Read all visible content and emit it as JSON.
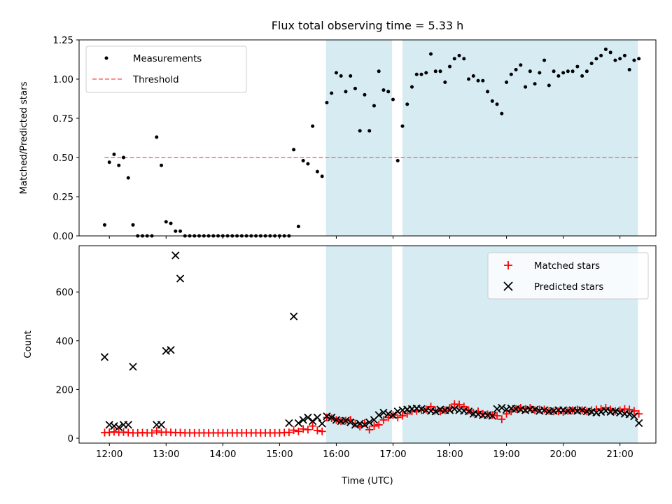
{
  "chart_data": [
    {
      "type": "scatter",
      "title": "Flux total observing time = 5.33 h",
      "xlabel": "",
      "ylabel": "Matched/Predicted stars",
      "xlim": [
        "11:28",
        "21:38"
      ],
      "ylim": [
        0,
        1.25
      ],
      "yticks": [
        "0.00",
        "0.25",
        "0.50",
        "0.75",
        "1.00",
        "1.25"
      ],
      "legend_position": "upper-left",
      "shaded_intervals": [
        [
          "15:49",
          "16:59"
        ],
        [
          "17:10",
          "21:19"
        ]
      ],
      "shade_color": "#add8e6",
      "series": [
        {
          "name": "Measurements",
          "color": "#000000",
          "marker": "dot",
          "x": [
            "11:55",
            "12:00",
            "12:05",
            "12:10",
            "12:15",
            "12:20",
            "12:25",
            "12:30",
            "12:35",
            "12:40",
            "12:45",
            "12:50",
            "12:55",
            "13:00",
            "13:05",
            "13:10",
            "13:15",
            "13:20",
            "13:25",
            "13:30",
            "13:35",
            "13:40",
            "13:45",
            "13:50",
            "13:55",
            "14:00",
            "14:05",
            "14:10",
            "14:15",
            "14:20",
            "14:25",
            "14:30",
            "14:35",
            "14:40",
            "14:45",
            "14:50",
            "14:55",
            "15:00",
            "15:05",
            "15:10",
            "15:15",
            "15:20",
            "15:25",
            "15:30",
            "15:35",
            "15:40",
            "15:45",
            "15:50",
            "15:55",
            "16:00",
            "16:05",
            "16:10",
            "16:15",
            "16:20",
            "16:25",
            "16:30",
            "16:35",
            "16:40",
            "16:45",
            "16:50",
            "16:55",
            "17:00",
            "17:05",
            "17:10",
            "17:15",
            "17:20",
            "17:25",
            "17:30",
            "17:35",
            "17:40",
            "17:45",
            "17:50",
            "17:55",
            "18:00",
            "18:05",
            "18:10",
            "18:15",
            "18:20",
            "18:25",
            "18:30",
            "18:35",
            "18:40",
            "18:45",
            "18:50",
            "18:55",
            "19:00",
            "19:05",
            "19:10",
            "19:15",
            "19:20",
            "19:25",
            "19:30",
            "19:35",
            "19:40",
            "19:45",
            "19:50",
            "19:55",
            "20:00",
            "20:05",
            "20:10",
            "20:15",
            "20:20",
            "20:25",
            "20:30",
            "20:35",
            "20:40",
            "20:45",
            "20:50",
            "20:55",
            "21:00",
            "21:05",
            "21:10",
            "21:15",
            "21:20"
          ],
          "y": [
            0.07,
            0.47,
            0.52,
            0.45,
            0.5,
            0.37,
            0.07,
            0.0,
            0.0,
            0.0,
            0.0,
            0.63,
            0.45,
            0.09,
            0.08,
            0.03,
            0.03,
            0.0,
            0.0,
            0.0,
            0.0,
            0.0,
            0.0,
            0.0,
            0.0,
            0.0,
            0.0,
            0.0,
            0.0,
            0.0,
            0.0,
            0.0,
            0.0,
            0.0,
            0.0,
            0.0,
            0.0,
            0.0,
            0.0,
            0.0,
            0.55,
            0.06,
            0.48,
            0.46,
            0.7,
            0.41,
            0.38,
            0.85,
            0.91,
            1.04,
            1.02,
            0.92,
            1.02,
            0.94,
            0.67,
            0.9,
            0.67,
            0.83,
            1.05,
            0.93,
            0.92,
            0.87,
            0.48,
            0.7,
            0.84,
            0.95,
            1.03,
            1.03,
            1.04,
            1.16,
            1.05,
            1.05,
            0.98,
            1.08,
            1.13,
            1.15,
            1.13,
            1.0,
            1.02,
            0.99,
            0.99,
            0.92,
            0.86,
            0.84,
            0.78,
            0.98,
            1.03,
            1.06,
            1.09,
            0.95,
            1.05,
            0.97,
            1.04,
            1.12,
            0.96,
            1.05,
            1.02,
            1.04,
            1.05,
            1.05,
            1.08,
            1.02,
            1.05,
            1.1,
            1.13,
            1.15,
            1.19,
            1.17,
            1.12,
            1.13,
            1.15,
            1.06,
            1.12,
            1.13
          ]
        },
        {
          "name": "Threshold",
          "color": "#ff7f7f",
          "style": "dashed",
          "x": [
            "11:55",
            "21:20"
          ],
          "y": [
            0.5,
            0.5
          ]
        }
      ]
    },
    {
      "type": "scatter",
      "title": "",
      "xlabel": "Time (UTC)",
      "ylabel": "Count",
      "xlim": [
        "11:28",
        "21:38"
      ],
      "ylim": [
        -20,
        790
      ],
      "yticks": [
        "0",
        "200",
        "400",
        "600"
      ],
      "xticks": [
        "12:00",
        "13:00",
        "14:00",
        "15:00",
        "16:00",
        "17:00",
        "18:00",
        "19:00",
        "20:00",
        "21:00"
      ],
      "legend_position": "upper-right",
      "shaded_intervals": [
        [
          "15:49",
          "16:59"
        ],
        [
          "17:10",
          "21:19"
        ]
      ],
      "shade_color": "#add8e6",
      "series": [
        {
          "name": "Matched stars",
          "color": "#ff0000",
          "marker": "plus",
          "x": [
            "11:55",
            "12:00",
            "12:05",
            "12:10",
            "12:15",
            "12:20",
            "12:25",
            "12:30",
            "12:35",
            "12:40",
            "12:45",
            "12:50",
            "12:55",
            "13:00",
            "13:05",
            "13:10",
            "13:15",
            "13:20",
            "13:25",
            "13:30",
            "13:35",
            "13:40",
            "13:45",
            "13:50",
            "13:55",
            "14:00",
            "14:05",
            "14:10",
            "14:15",
            "14:20",
            "14:25",
            "14:30",
            "14:35",
            "14:40",
            "14:45",
            "14:50",
            "14:55",
            "15:00",
            "15:05",
            "15:10",
            "15:15",
            "15:20",
            "15:25",
            "15:30",
            "15:35",
            "15:40",
            "15:45",
            "15:50",
            "15:55",
            "16:00",
            "16:05",
            "16:10",
            "16:15",
            "16:20",
            "16:25",
            "16:30",
            "16:35",
            "16:40",
            "16:45",
            "16:50",
            "16:55",
            "17:00",
            "17:05",
            "17:10",
            "17:15",
            "17:20",
            "17:25",
            "17:30",
            "17:35",
            "17:40",
            "17:45",
            "17:50",
            "17:55",
            "18:00",
            "18:05",
            "18:10",
            "18:15",
            "18:20",
            "18:25",
            "18:30",
            "18:35",
            "18:40",
            "18:45",
            "18:50",
            "18:55",
            "19:00",
            "19:05",
            "19:10",
            "19:15",
            "19:20",
            "19:25",
            "19:30",
            "19:35",
            "19:40",
            "19:45",
            "19:50",
            "19:55",
            "20:00",
            "20:05",
            "20:10",
            "20:15",
            "20:20",
            "20:25",
            "20:30",
            "20:35",
            "20:40",
            "20:45",
            "20:50",
            "20:55",
            "21:00",
            "21:05",
            "21:10",
            "21:15",
            "21:20"
          ],
          "y": [
            23,
            24,
            26,
            24,
            25,
            23,
            22,
            22,
            23,
            22,
            22,
            30,
            24,
            25,
            24,
            23,
            23,
            22,
            22,
            22,
            22,
            22,
            22,
            22,
            22,
            22,
            22,
            22,
            22,
            22,
            22,
            22,
            22,
            22,
            22,
            22,
            22,
            22,
            23,
            24,
            33,
            28,
            38,
            35,
            50,
            32,
            28,
            85,
            82,
            75,
            70,
            72,
            76,
            60,
            48,
            62,
            35,
            50,
            55,
            75,
            85,
            95,
            85,
            92,
            100,
            110,
            112,
            115,
            118,
            130,
            115,
            110,
            115,
            125,
            140,
            138,
            130,
            115,
            105,
            110,
            100,
            98,
            95,
            92,
            78,
            100,
            110,
            120,
            125,
            120,
            125,
            115,
            118,
            118,
            112,
            110,
            110,
            108,
            112,
            115,
            118,
            115,
            110,
            115,
            118,
            120,
            125,
            118,
            112,
            115,
            120,
            118,
            112,
            100
          ]
        },
        {
          "name": "Predicted stars",
          "color": "#000000",
          "marker": "x",
          "x": [
            "11:55",
            "12:00",
            "12:05",
            "12:10",
            "12:15",
            "12:20",
            "12:25",
            "12:50",
            "12:55",
            "13:00",
            "13:05",
            "13:10",
            "13:15",
            "15:10",
            "15:15",
            "15:20",
            "15:25",
            "15:30",
            "15:35",
            "15:40",
            "15:45",
            "15:50",
            "15:55",
            "16:00",
            "16:05",
            "16:10",
            "16:15",
            "16:20",
            "16:25",
            "16:30",
            "16:35",
            "16:40",
            "16:45",
            "16:50",
            "16:55",
            "17:00",
            "17:05",
            "17:10",
            "17:15",
            "17:20",
            "17:25",
            "17:30",
            "17:35",
            "17:40",
            "17:45",
            "17:50",
            "17:55",
            "18:00",
            "18:05",
            "18:10",
            "18:15",
            "18:20",
            "18:25",
            "18:30",
            "18:35",
            "18:40",
            "18:45",
            "18:50",
            "18:55",
            "19:00",
            "19:05",
            "19:10",
            "19:15",
            "19:20",
            "19:25",
            "19:30",
            "19:35",
            "19:40",
            "19:45",
            "19:50",
            "19:55",
            "20:00",
            "20:05",
            "20:10",
            "20:15",
            "20:20",
            "20:25",
            "20:30",
            "20:35",
            "20:40",
            "20:45",
            "20:50",
            "20:55",
            "21:00",
            "21:05",
            "21:10",
            "21:15",
            "21:20"
          ],
          "y": [
            333,
            55,
            50,
            45,
            55,
            55,
            293,
            55,
            55,
            358,
            362,
            750,
            655,
            62,
            500,
            62,
            75,
            85,
            70,
            85,
            60,
            90,
            85,
            75,
            70,
            72,
            65,
            55,
            60,
            55,
            65,
            75,
            95,
            105,
            100,
            95,
            110,
            115,
            118,
            120,
            122,
            120,
            115,
            112,
            110,
            118,
            115,
            115,
            120,
            115,
            112,
            110,
            100,
            98,
            95,
            95,
            92,
            120,
            125,
            118,
            122,
            120,
            118,
            115,
            118,
            118,
            112,
            115,
            110,
            112,
            115,
            115,
            112,
            115,
            112,
            115,
            110,
            108,
            105,
            108,
            112,
            108,
            110,
            105,
            100,
            98,
            90,
            62
          ]
        }
      ]
    }
  ]
}
